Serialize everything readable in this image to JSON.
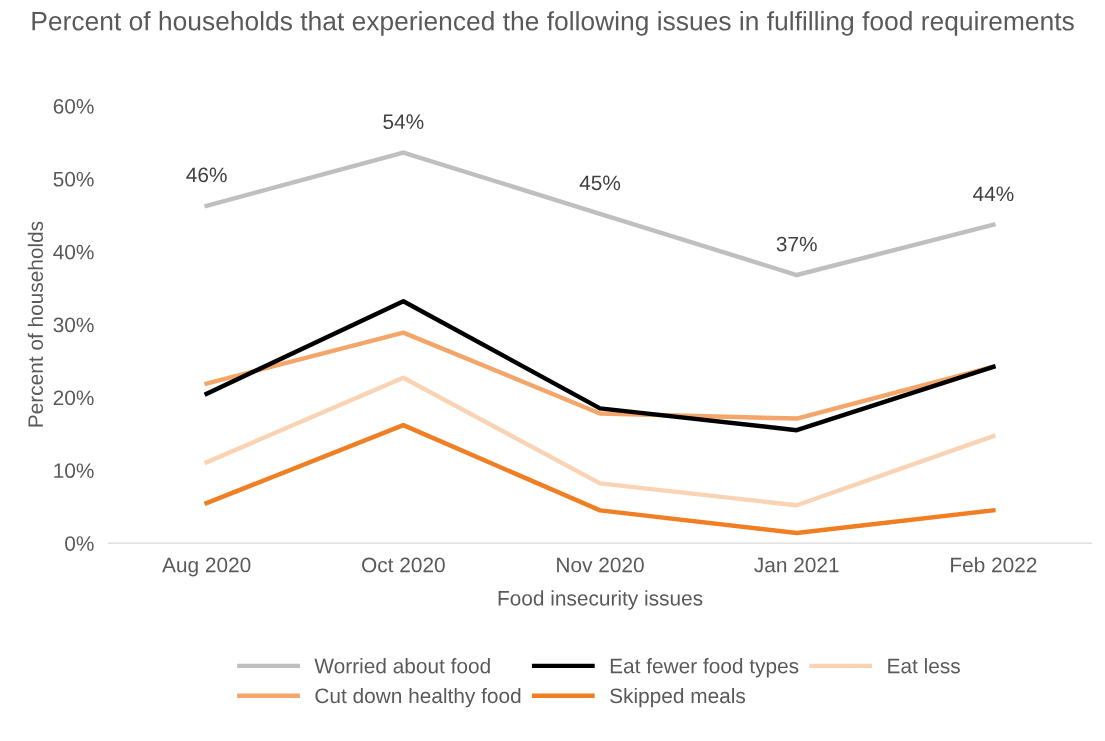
{
  "chart_data": {
    "type": "line",
    "title": "Percent of households that experienced the following issues in fulfilling food requirements",
    "xlabel": "Food insecurity issues",
    "ylabel": "Percent of households",
    "categories": [
      "Aug 2020",
      "Oct 2020",
      "Nov 2020",
      "Jan 2021",
      "Feb 2022"
    ],
    "series": [
      {
        "name": "Worried about food",
        "color": "#bfbfbf",
        "values": [
          46.3,
          53.6,
          45.2,
          36.8,
          43.7
        ],
        "value_labels": [
          "46%",
          "54%",
          "45%",
          "37%",
          "44%"
        ]
      },
      {
        "name": "Cut down healthy food",
        "color": "#f4a66a",
        "values": [
          21.9,
          28.9,
          17.8,
          17.1,
          24.2
        ]
      },
      {
        "name": "Eat fewer food types",
        "color": "#000000",
        "values": [
          20.5,
          33.2,
          18.5,
          15.5,
          24.2
        ]
      },
      {
        "name": "Skipped meals",
        "color": "#f07f24",
        "values": [
          5.5,
          16.2,
          4.5,
          1.4,
          4.5
        ]
      },
      {
        "name": "Eat less",
        "color": "#fad3b4",
        "values": [
          11.1,
          22.7,
          8.2,
          5.2,
          14.7
        ]
      }
    ],
    "ylim": [
      0,
      60
    ],
    "yticks": [
      {
        "value": 0,
        "label": "0%"
      },
      {
        "value": 10,
        "label": "10%"
      },
      {
        "value": 20,
        "label": "20%"
      },
      {
        "value": 30,
        "label": "30%"
      },
      {
        "value": 40,
        "label": "40%"
      },
      {
        "value": 50,
        "label": "50%"
      },
      {
        "value": 60,
        "label": "60%"
      }
    ],
    "grid": false,
    "legend": "bottom",
    "line_style": "solid"
  }
}
